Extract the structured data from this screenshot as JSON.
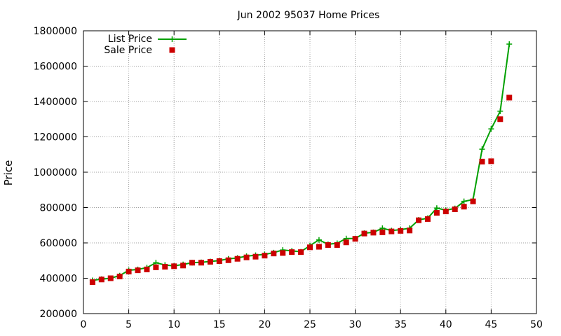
{
  "chart_data": {
    "type": "line",
    "title": "Jun 2002 95037 Home Prices",
    "xlabel": "",
    "ylabel": "Price",
    "xlim": [
      0,
      50
    ],
    "ylim": [
      200000,
      1800000
    ],
    "xticks": [
      0,
      5,
      10,
      15,
      20,
      25,
      30,
      35,
      40,
      45,
      50
    ],
    "yticks": [
      200000,
      400000,
      600000,
      800000,
      1000000,
      1200000,
      1400000,
      1600000,
      1800000
    ],
    "grid": true,
    "legend_position": "top-left",
    "series": [
      {
        "name": "List Price",
        "style": "line-plus",
        "color": "#00a000",
        "x": [
          1,
          2,
          3,
          4,
          5,
          6,
          7,
          8,
          9,
          10,
          11,
          12,
          13,
          14,
          15,
          16,
          17,
          18,
          19,
          20,
          21,
          22,
          23,
          24,
          25,
          26,
          27,
          28,
          29,
          30,
          31,
          32,
          33,
          34,
          35,
          36,
          37,
          38,
          39,
          40,
          41,
          42,
          43,
          44,
          45,
          46,
          47
        ],
        "values": [
          388000,
          395000,
          400000,
          415000,
          445000,
          450000,
          460000,
          488000,
          475000,
          470000,
          478000,
          488000,
          490000,
          495000,
          500000,
          510000,
          515000,
          525000,
          530000,
          535000,
          545000,
          560000,
          555000,
          550000,
          585000,
          617000,
          592000,
          598000,
          625000,
          625000,
          655000,
          660000,
          683000,
          670000,
          675000,
          683000,
          730000,
          740000,
          797000,
          785000,
          795000,
          835000,
          845000,
          1130000,
          1245000,
          1345000,
          1725000
        ]
      },
      {
        "name": "Sale Price",
        "style": "square-markers",
        "color": "#cc0000",
        "x": [
          1,
          2,
          3,
          4,
          5,
          6,
          7,
          8,
          9,
          10,
          11,
          12,
          13,
          14,
          15,
          16,
          17,
          18,
          19,
          20,
          21,
          22,
          23,
          24,
          25,
          26,
          27,
          28,
          29,
          30,
          31,
          32,
          33,
          34,
          35,
          36,
          37,
          38,
          39,
          40,
          41,
          42,
          43,
          44,
          45,
          46,
          47
        ],
        "values": [
          378000,
          393000,
          400000,
          410000,
          438000,
          445000,
          450000,
          462000,
          465000,
          468000,
          472000,
          488000,
          488000,
          493000,
          497000,
          502000,
          510000,
          518000,
          522000,
          528000,
          540000,
          543000,
          548000,
          548000,
          575000,
          578000,
          588000,
          588000,
          603000,
          623000,
          653000,
          658000,
          660000,
          665000,
          668000,
          670000,
          728000,
          735000,
          770000,
          778000,
          790000,
          805000,
          835000,
          1060000,
          1062000,
          1300000,
          1422000
        ]
      }
    ]
  }
}
